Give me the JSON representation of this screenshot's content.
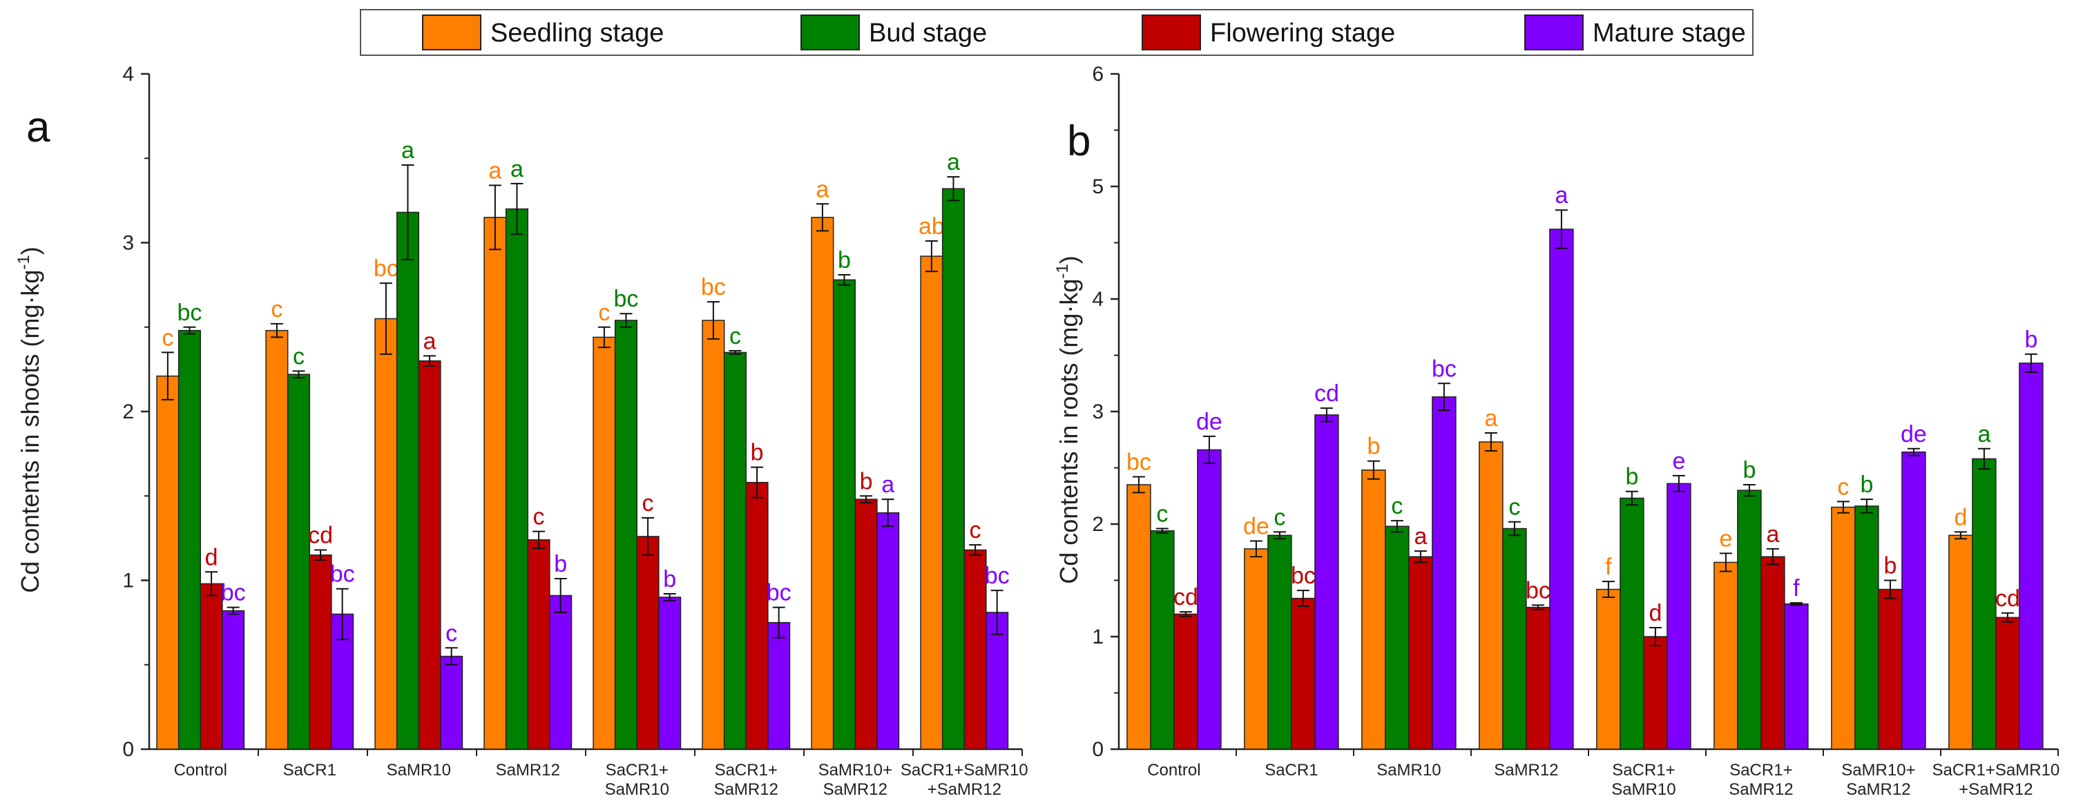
{
  "legend": {
    "items": [
      {
        "label": "Seedling stage",
        "color": "#FF8000"
      },
      {
        "label": "Bud stage",
        "color": "#008000"
      },
      {
        "label": "Flowering stage",
        "color": "#C00000"
      },
      {
        "label": "Mature stage",
        "color": "#8000FF"
      }
    ]
  },
  "chart_data": [
    {
      "type": "bar",
      "panel_label": "a",
      "ylabel": "Cd contents in shoots (mg·kg⁻¹)",
      "ylabel_base": "Cd contents in shoots (mg·kg",
      "ylabel_sup": "-1",
      "ylabel_close": ")",
      "ylim": [
        0,
        4
      ],
      "yticks": [
        0,
        1,
        2,
        3,
        4
      ],
      "categories": [
        [
          "Control"
        ],
        [
          "SaCR1"
        ],
        [
          "SaMR10"
        ],
        [
          "SaMR12"
        ],
        [
          "SaCR1+",
          "SaMR10"
        ],
        [
          "SaCR1+",
          "SaMR12"
        ],
        [
          "SaMR10+",
          "SaMR12"
        ],
        [
          "SaCR1+SaMR10",
          "+SaMR12"
        ]
      ],
      "series": [
        {
          "name": "Seedling stage",
          "color": "#FF8000",
          "values": [
            2.21,
            2.48,
            2.55,
            3.15,
            2.44,
            2.54,
            3.15,
            2.92
          ],
          "errors": [
            0.14,
            0.04,
            0.21,
            0.19,
            0.06,
            0.11,
            0.08,
            0.09
          ],
          "letters": [
            "c",
            "c",
            "bc",
            "a",
            "c",
            "bc",
            "a",
            "ab"
          ]
        },
        {
          "name": "Bud stage",
          "color": "#008000",
          "values": [
            2.48,
            2.22,
            3.18,
            3.2,
            2.54,
            2.35,
            2.78,
            3.32
          ],
          "errors": [
            0.02,
            0.02,
            0.28,
            0.15,
            0.04,
            0.01,
            0.03,
            0.07
          ],
          "letters": [
            "bc",
            "c",
            "a",
            "a",
            "bc",
            "c",
            "b",
            "a"
          ]
        },
        {
          "name": "Flowering stage",
          "color": "#C00000",
          "values": [
            0.98,
            1.15,
            2.3,
            1.24,
            1.26,
            1.58,
            1.48,
            1.18
          ],
          "errors": [
            0.07,
            0.03,
            0.03,
            0.05,
            0.11,
            0.09,
            0.02,
            0.03
          ],
          "letters": [
            "d",
            "cd",
            "a",
            "c",
            "c",
            "b",
            "b",
            "c"
          ]
        },
        {
          "name": "Mature stage",
          "color": "#8000FF",
          "values": [
            0.82,
            0.8,
            0.55,
            0.91,
            0.9,
            0.75,
            1.4,
            0.81
          ],
          "errors": [
            0.02,
            0.15,
            0.05,
            0.1,
            0.02,
            0.09,
            0.08,
            0.13
          ],
          "letters": [
            "bc",
            "bc",
            "c",
            "b",
            "b",
            "bc",
            "a",
            "bc"
          ]
        }
      ]
    },
    {
      "type": "bar",
      "panel_label": "b",
      "ylabel": "Cd contents in roots (mg·kg⁻¹)",
      "ylabel_base": "Cd contents in roots (mg·kg",
      "ylabel_sup": "-1",
      "ylabel_close": ")",
      "ylim": [
        0,
        6
      ],
      "yticks": [
        0,
        1,
        2,
        3,
        4,
        5,
        6
      ],
      "categories": [
        [
          "Control"
        ],
        [
          "SaCR1"
        ],
        [
          "SaMR10"
        ],
        [
          "SaMR12"
        ],
        [
          "SaCR1+",
          "SaMR10"
        ],
        [
          "SaCR1+",
          "SaMR12"
        ],
        [
          "SaMR10+",
          "SaMR12"
        ],
        [
          "SaCR1+SaMR10",
          "+SaMR12"
        ]
      ],
      "series": [
        {
          "name": "Seedling stage",
          "color": "#FF8000",
          "values": [
            2.35,
            1.78,
            2.48,
            2.73,
            1.42,
            1.66,
            2.15,
            1.9
          ],
          "errors": [
            0.07,
            0.07,
            0.08,
            0.08,
            0.07,
            0.08,
            0.05,
            0.03
          ],
          "letters": [
            "bc",
            "de",
            "b",
            "a",
            "f",
            "e",
            "c",
            "d"
          ]
        },
        {
          "name": "Bud stage",
          "color": "#008000",
          "values": [
            1.94,
            1.9,
            1.98,
            1.96,
            2.23,
            2.3,
            2.16,
            2.58
          ],
          "errors": [
            0.02,
            0.03,
            0.05,
            0.06,
            0.06,
            0.05,
            0.06,
            0.09
          ],
          "letters": [
            "c",
            "c",
            "c",
            "c",
            "b",
            "b",
            "b",
            "a"
          ]
        },
        {
          "name": "Flowering stage",
          "color": "#C00000",
          "values": [
            1.2,
            1.34,
            1.71,
            1.26,
            1.0,
            1.71,
            1.42,
            1.17
          ],
          "errors": [
            0.02,
            0.07,
            0.05,
            0.02,
            0.08,
            0.07,
            0.08,
            0.04
          ],
          "letters": [
            "cd",
            "bc",
            "a",
            "bc",
            "d",
            "a",
            "b",
            "cd"
          ]
        },
        {
          "name": "Mature stage",
          "color": "#8000FF",
          "values": [
            2.66,
            2.97,
            3.13,
            4.62,
            2.36,
            1.29,
            2.64,
            3.43
          ],
          "errors": [
            0.12,
            0.06,
            0.12,
            0.17,
            0.07,
            0.01,
            0.03,
            0.08
          ],
          "letters": [
            "de",
            "cd",
            "bc",
            "a",
            "e",
            "f",
            "de",
            "b"
          ]
        }
      ]
    }
  ]
}
